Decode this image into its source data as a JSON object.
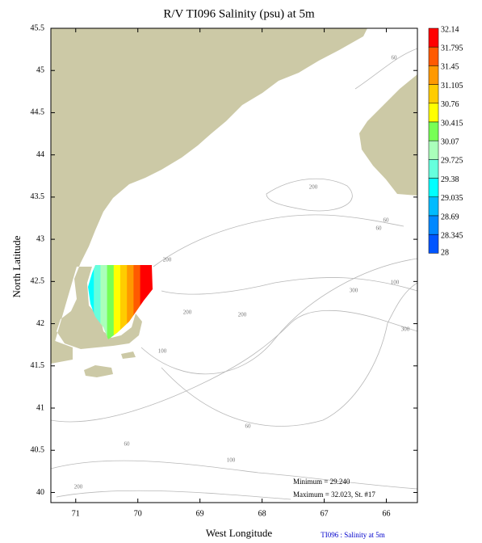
{
  "chart_data": {
    "type": "map",
    "title": "R/V TI096 Salinity (psu) at 5m",
    "x_label": "West Longitude",
    "y_label": "North Latitude",
    "xlim": [
      71.4,
      65.5
    ],
    "ylim": [
      39.88,
      45.5
    ],
    "xticks": [
      71,
      70,
      69,
      68,
      67,
      66
    ],
    "yticks": [
      45.5,
      45,
      44.5,
      44,
      43.5,
      43,
      42.5,
      42,
      41.5,
      41,
      40.5,
      40
    ],
    "land_color": "#ccc9a6",
    "colorbar": {
      "levels": [
        32.14,
        31.795,
        31.45,
        31.105,
        30.76,
        30.415,
        30.07,
        29.725,
        29.38,
        29.035,
        28.69,
        28.345,
        28
      ],
      "colors": [
        "#ff0000",
        "#ff5a00",
        "#ff9900",
        "#ffcc00",
        "#ffff00",
        "#77ff55",
        "#aaffbb",
        "#66ffdd",
        "#00ffff",
        "#00bbff",
        "#0088ff",
        "#0055ff"
      ]
    },
    "contour_labels": [
      60,
      200,
      60,
      60,
      200,
      100,
      300,
      200,
      200,
      300,
      100,
      60,
      60,
      100,
      200
    ],
    "annotations": [
      "Minimum = 29.240",
      "Maximum = 32.023, St. #17"
    ],
    "footer": "TI096 : Salinity at 5m"
  }
}
